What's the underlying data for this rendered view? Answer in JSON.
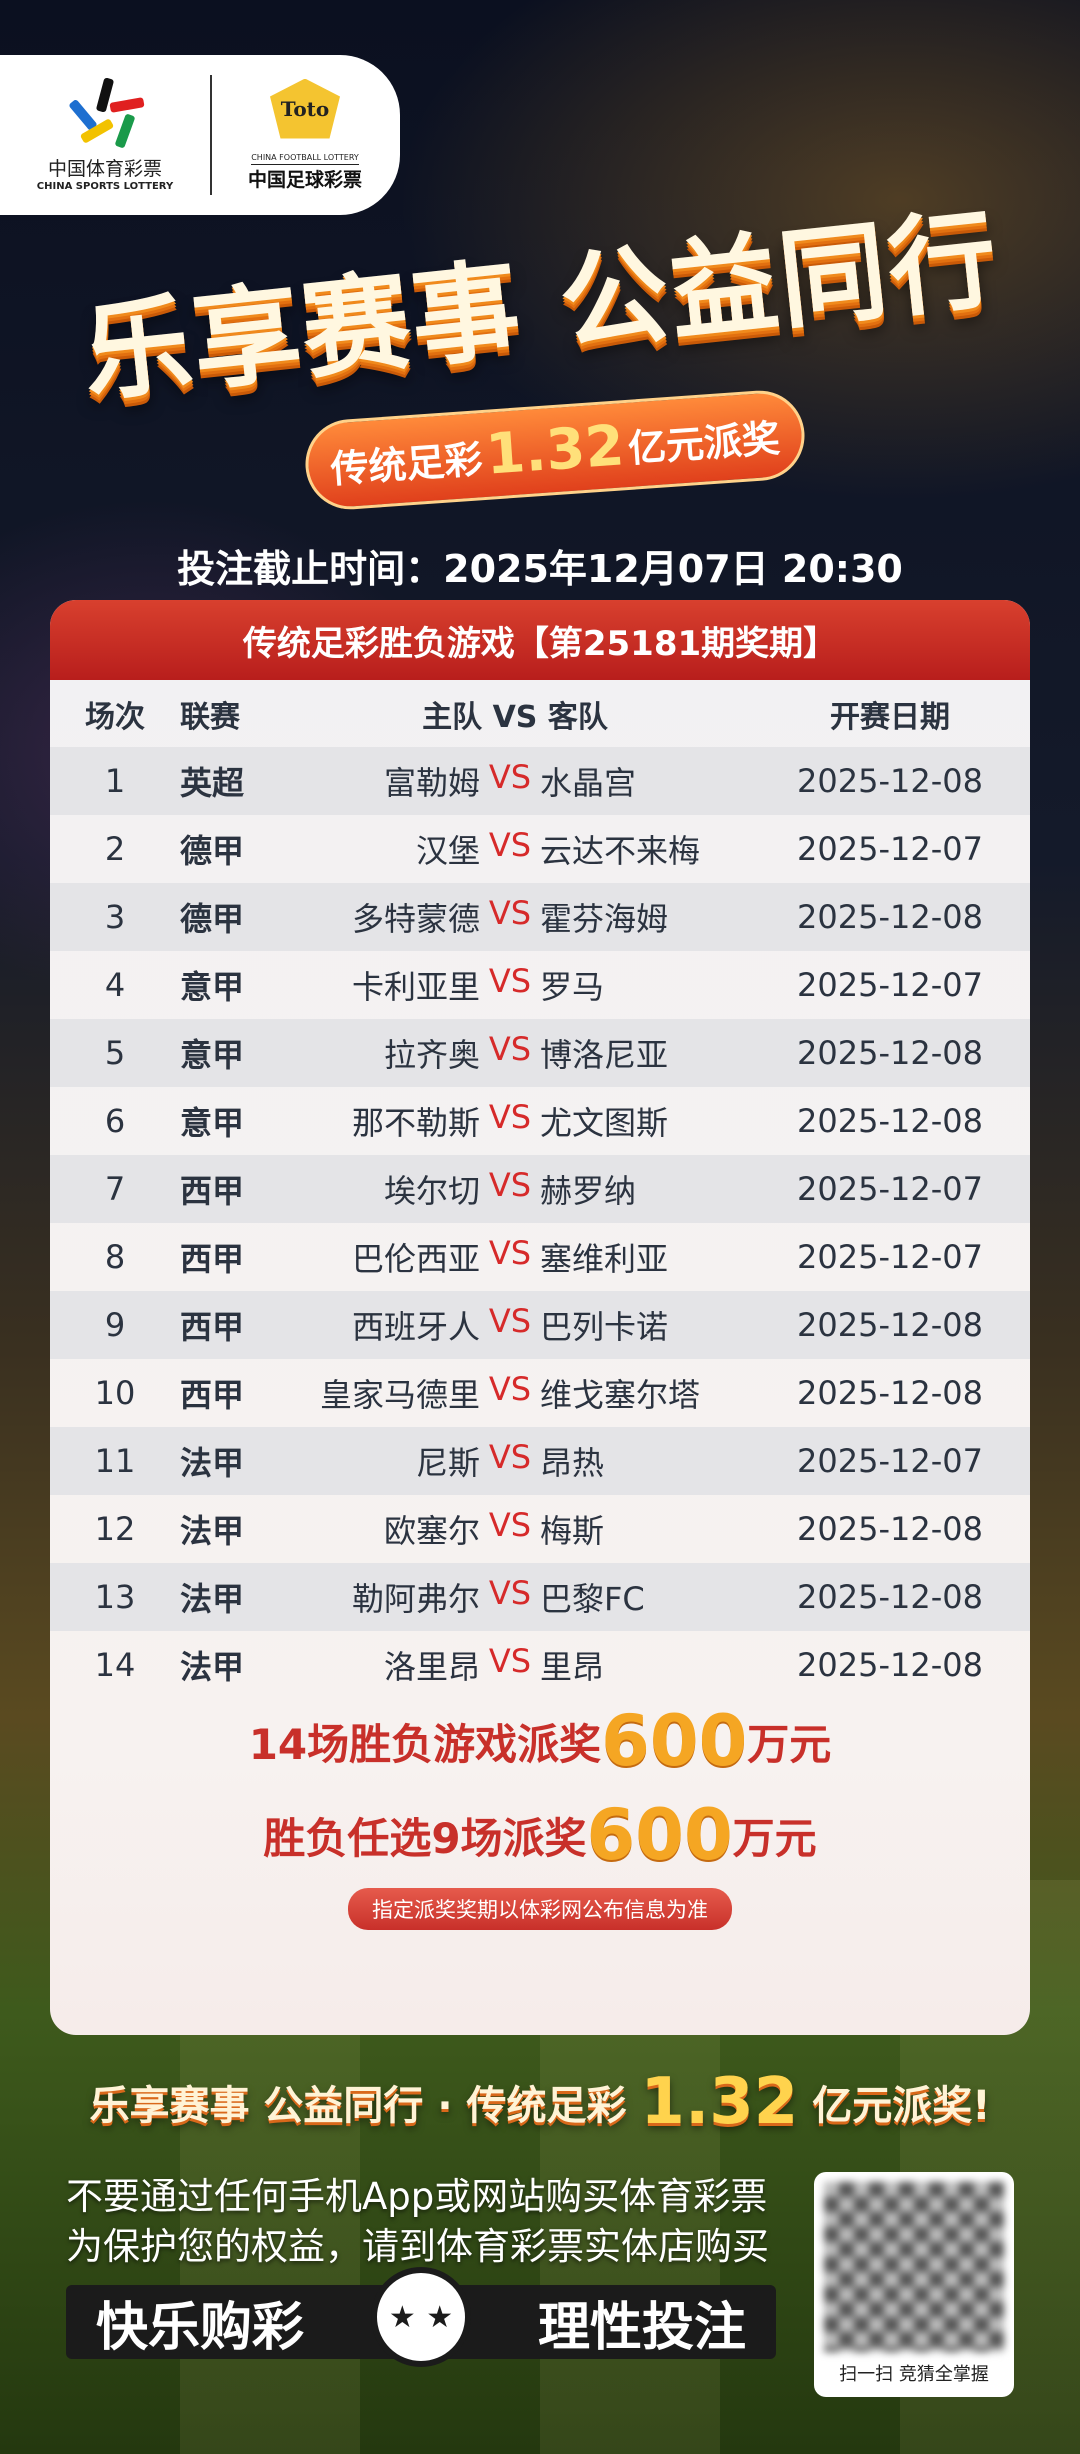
{
  "logos": {
    "sports_lottery_cn": "中国体育彩票",
    "sports_lottery_en": "CHINA SPORTS LOTTERY",
    "toto_mark": "Toto",
    "football_lottery_en": "CHINA FOOTBALL LOTTERY",
    "football_lottery_cn": "中国足球彩票"
  },
  "hero": {
    "title": "乐享赛事 公益同行",
    "pill_prefix": "传统足彩",
    "pill_amount": "1.32",
    "pill_suffix": "亿元派奖"
  },
  "deadline": "投注截止时间：2025年12月07日 20:30",
  "table": {
    "title": "传统足彩胜负游戏【第25181期奖期】",
    "headers": {
      "no": "场次",
      "league": "联赛",
      "match": "主队 VS 客队",
      "date": "开赛日期"
    },
    "vs": "VS",
    "rows": [
      {
        "no": "1",
        "league": "英超",
        "home": "富勒姆",
        "away": "水晶宫",
        "date": "2025-12-08"
      },
      {
        "no": "2",
        "league": "德甲",
        "home": "汉堡",
        "away": "云达不来梅",
        "date": "2025-12-07"
      },
      {
        "no": "3",
        "league": "德甲",
        "home": "多特蒙德",
        "away": "霍芬海姆",
        "date": "2025-12-08"
      },
      {
        "no": "4",
        "league": "意甲",
        "home": "卡利亚里",
        "away": "罗马",
        "date": "2025-12-07"
      },
      {
        "no": "5",
        "league": "意甲",
        "home": "拉齐奥",
        "away": "博洛尼亚",
        "date": "2025-12-08"
      },
      {
        "no": "6",
        "league": "意甲",
        "home": "那不勒斯",
        "away": "尤文图斯",
        "date": "2025-12-08"
      },
      {
        "no": "7",
        "league": "西甲",
        "home": "埃尔切",
        "away": "赫罗纳",
        "date": "2025-12-07"
      },
      {
        "no": "8",
        "league": "西甲",
        "home": "巴伦西亚",
        "away": "塞维利亚",
        "date": "2025-12-07"
      },
      {
        "no": "9",
        "league": "西甲",
        "home": "西班牙人",
        "away": "巴列卡诺",
        "date": "2025-12-08"
      },
      {
        "no": "10",
        "league": "西甲",
        "home": "皇家马德里",
        "away": "维戈塞尔塔",
        "date": "2025-12-08"
      },
      {
        "no": "11",
        "league": "法甲",
        "home": "尼斯",
        "away": "昂热",
        "date": "2025-12-07"
      },
      {
        "no": "12",
        "league": "法甲",
        "home": "欧塞尔",
        "away": "梅斯",
        "date": "2025-12-08"
      },
      {
        "no": "13",
        "league": "法甲",
        "home": "勒阿弗尔",
        "away": "巴黎FC",
        "date": "2025-12-08"
      },
      {
        "no": "14",
        "league": "法甲",
        "home": "洛里昂",
        "away": "里昂",
        "date": "2025-12-08"
      }
    ]
  },
  "prize": {
    "line1_prefix": "14场胜负游戏派奖",
    "line1_amount": "600",
    "line1_unit": "万元",
    "line2_prefix": "胜负任选9场派奖",
    "line2_amount": "600",
    "line2_unit": "万元",
    "note": "指定派奖奖期以体彩网公布信息为准"
  },
  "slogan": {
    "prefix": "乐享赛事 公益同行 · 传统足彩 ",
    "amount": "1.32",
    "suffix": " 亿元派奖!"
  },
  "warning": {
    "line1": "不要通过任何手机App或网站购买体育彩票",
    "line2": "为保护您的权益，请到体育彩票实体店购买"
  },
  "badge": {
    "left": "快乐购彩",
    "right": "理性投注",
    "icon": "smiley-star-eyes-icon"
  },
  "qr": {
    "caption": "扫一扫  竞猜全掌握"
  },
  "colors": {
    "accent_red": "#c8302a",
    "gold": "#f5a623",
    "vs_red": "#d62a2a"
  }
}
